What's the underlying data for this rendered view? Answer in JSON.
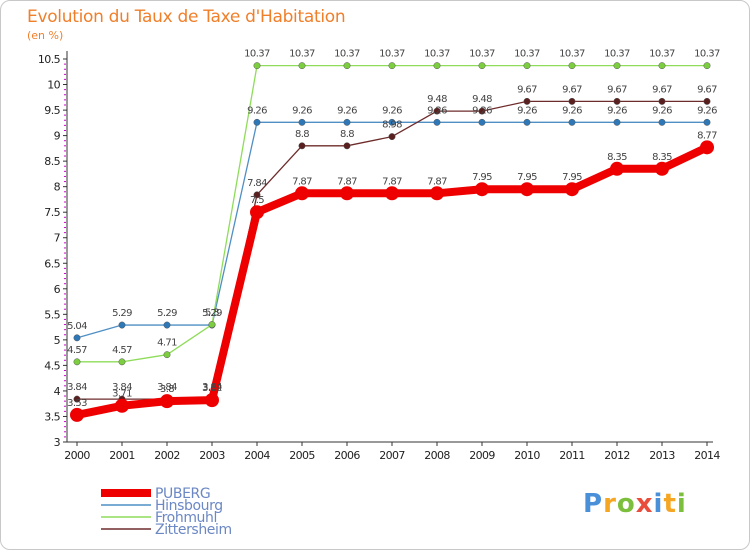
{
  "title": "Evolution du Taux de Taxe d'Habitation",
  "unit": "(en %)",
  "logo": "Proxiti",
  "chart_data": {
    "type": "line",
    "x": [
      "2000",
      "2001",
      "2002",
      "2003",
      "2004",
      "2005",
      "2006",
      "2007",
      "2008",
      "2009",
      "2010",
      "2011",
      "2012",
      "2013",
      "2014"
    ],
    "ylim": [
      3,
      10.5
    ],
    "yticks": [
      "3",
      "3.5",
      "4",
      "4.5",
      "5",
      "5.5",
      "6",
      "6.5",
      "7",
      "7.5",
      "8",
      "8.5",
      "9",
      "9.5",
      "10",
      "10.5"
    ],
    "grid": false,
    "legend": "bottom-left",
    "series": [
      {
        "name": "Hinsbourg",
        "color": "#4f8fc4",
        "marker": "#2f78b8",
        "values": [
          5.04,
          5.29,
          5.29,
          5.29,
          9.26,
          9.26,
          9.26,
          9.26,
          9.26,
          9.26,
          9.26,
          9.26,
          9.26,
          9.26,
          9.26
        ],
        "labels": [
          "5.04",
          "5.29",
          "5.29",
          "5.29",
          "9.26",
          "9.26",
          "9.26",
          "9.26",
          "9.26",
          "9.26",
          "9.26",
          "9.26",
          "9.26",
          "9.26",
          "9.26"
        ]
      },
      {
        "name": "Frohmuhl",
        "color": "#8fdc5a",
        "marker": "#7ccd3f",
        "values": [
          4.57,
          4.57,
          4.71,
          5.3,
          10.37,
          10.37,
          10.37,
          10.37,
          10.37,
          10.37,
          10.37,
          10.37,
          10.37,
          10.37,
          10.37
        ],
        "labels": [
          "4.57",
          "4.57",
          "4.71",
          "5.3",
          "10.37",
          "10.37",
          "10.37",
          "10.37",
          "10.37",
          "10.37",
          "10.37",
          "10.37",
          "10.37",
          "10.37",
          "10.37"
        ]
      },
      {
        "name": "Zittersheim",
        "color": "#6e2b2b",
        "marker": "#5a1f1f",
        "values": [
          3.84,
          3.84,
          3.84,
          3.84,
          7.84,
          8.8,
          8.8,
          8.98,
          9.48,
          9.48,
          9.67,
          9.67,
          9.67,
          9.67,
          9.67
        ],
        "labels": [
          "3.84",
          "3.84",
          "3.84",
          "3.84",
          "7.84",
          "8.8",
          "8.8",
          "8.98",
          "9.48",
          "9.48",
          "9.67",
          "9.67",
          "9.67",
          "9.67",
          "9.67"
        ]
      },
      {
        "name": "PUBERG",
        "color": "#ee0000",
        "marker": "#ee0000",
        "values": [
          3.53,
          3.71,
          3.8,
          3.82,
          7.5,
          7.87,
          7.87,
          7.87,
          7.87,
          7.95,
          7.95,
          7.95,
          8.35,
          8.35,
          8.77
        ],
        "labels": [
          "3.53",
          "3.71",
          "3.8",
          "3.82",
          "7.5",
          "7.87",
          "7.87",
          "7.87",
          "7.87",
          "7.95",
          "7.95",
          "7.95",
          "8.35",
          "8.35",
          "8.77"
        ]
      }
    ],
    "legend_order": [
      "PUBERG",
      "Hinsbourg",
      "Frohmuhl",
      "Zittersheim"
    ]
  }
}
